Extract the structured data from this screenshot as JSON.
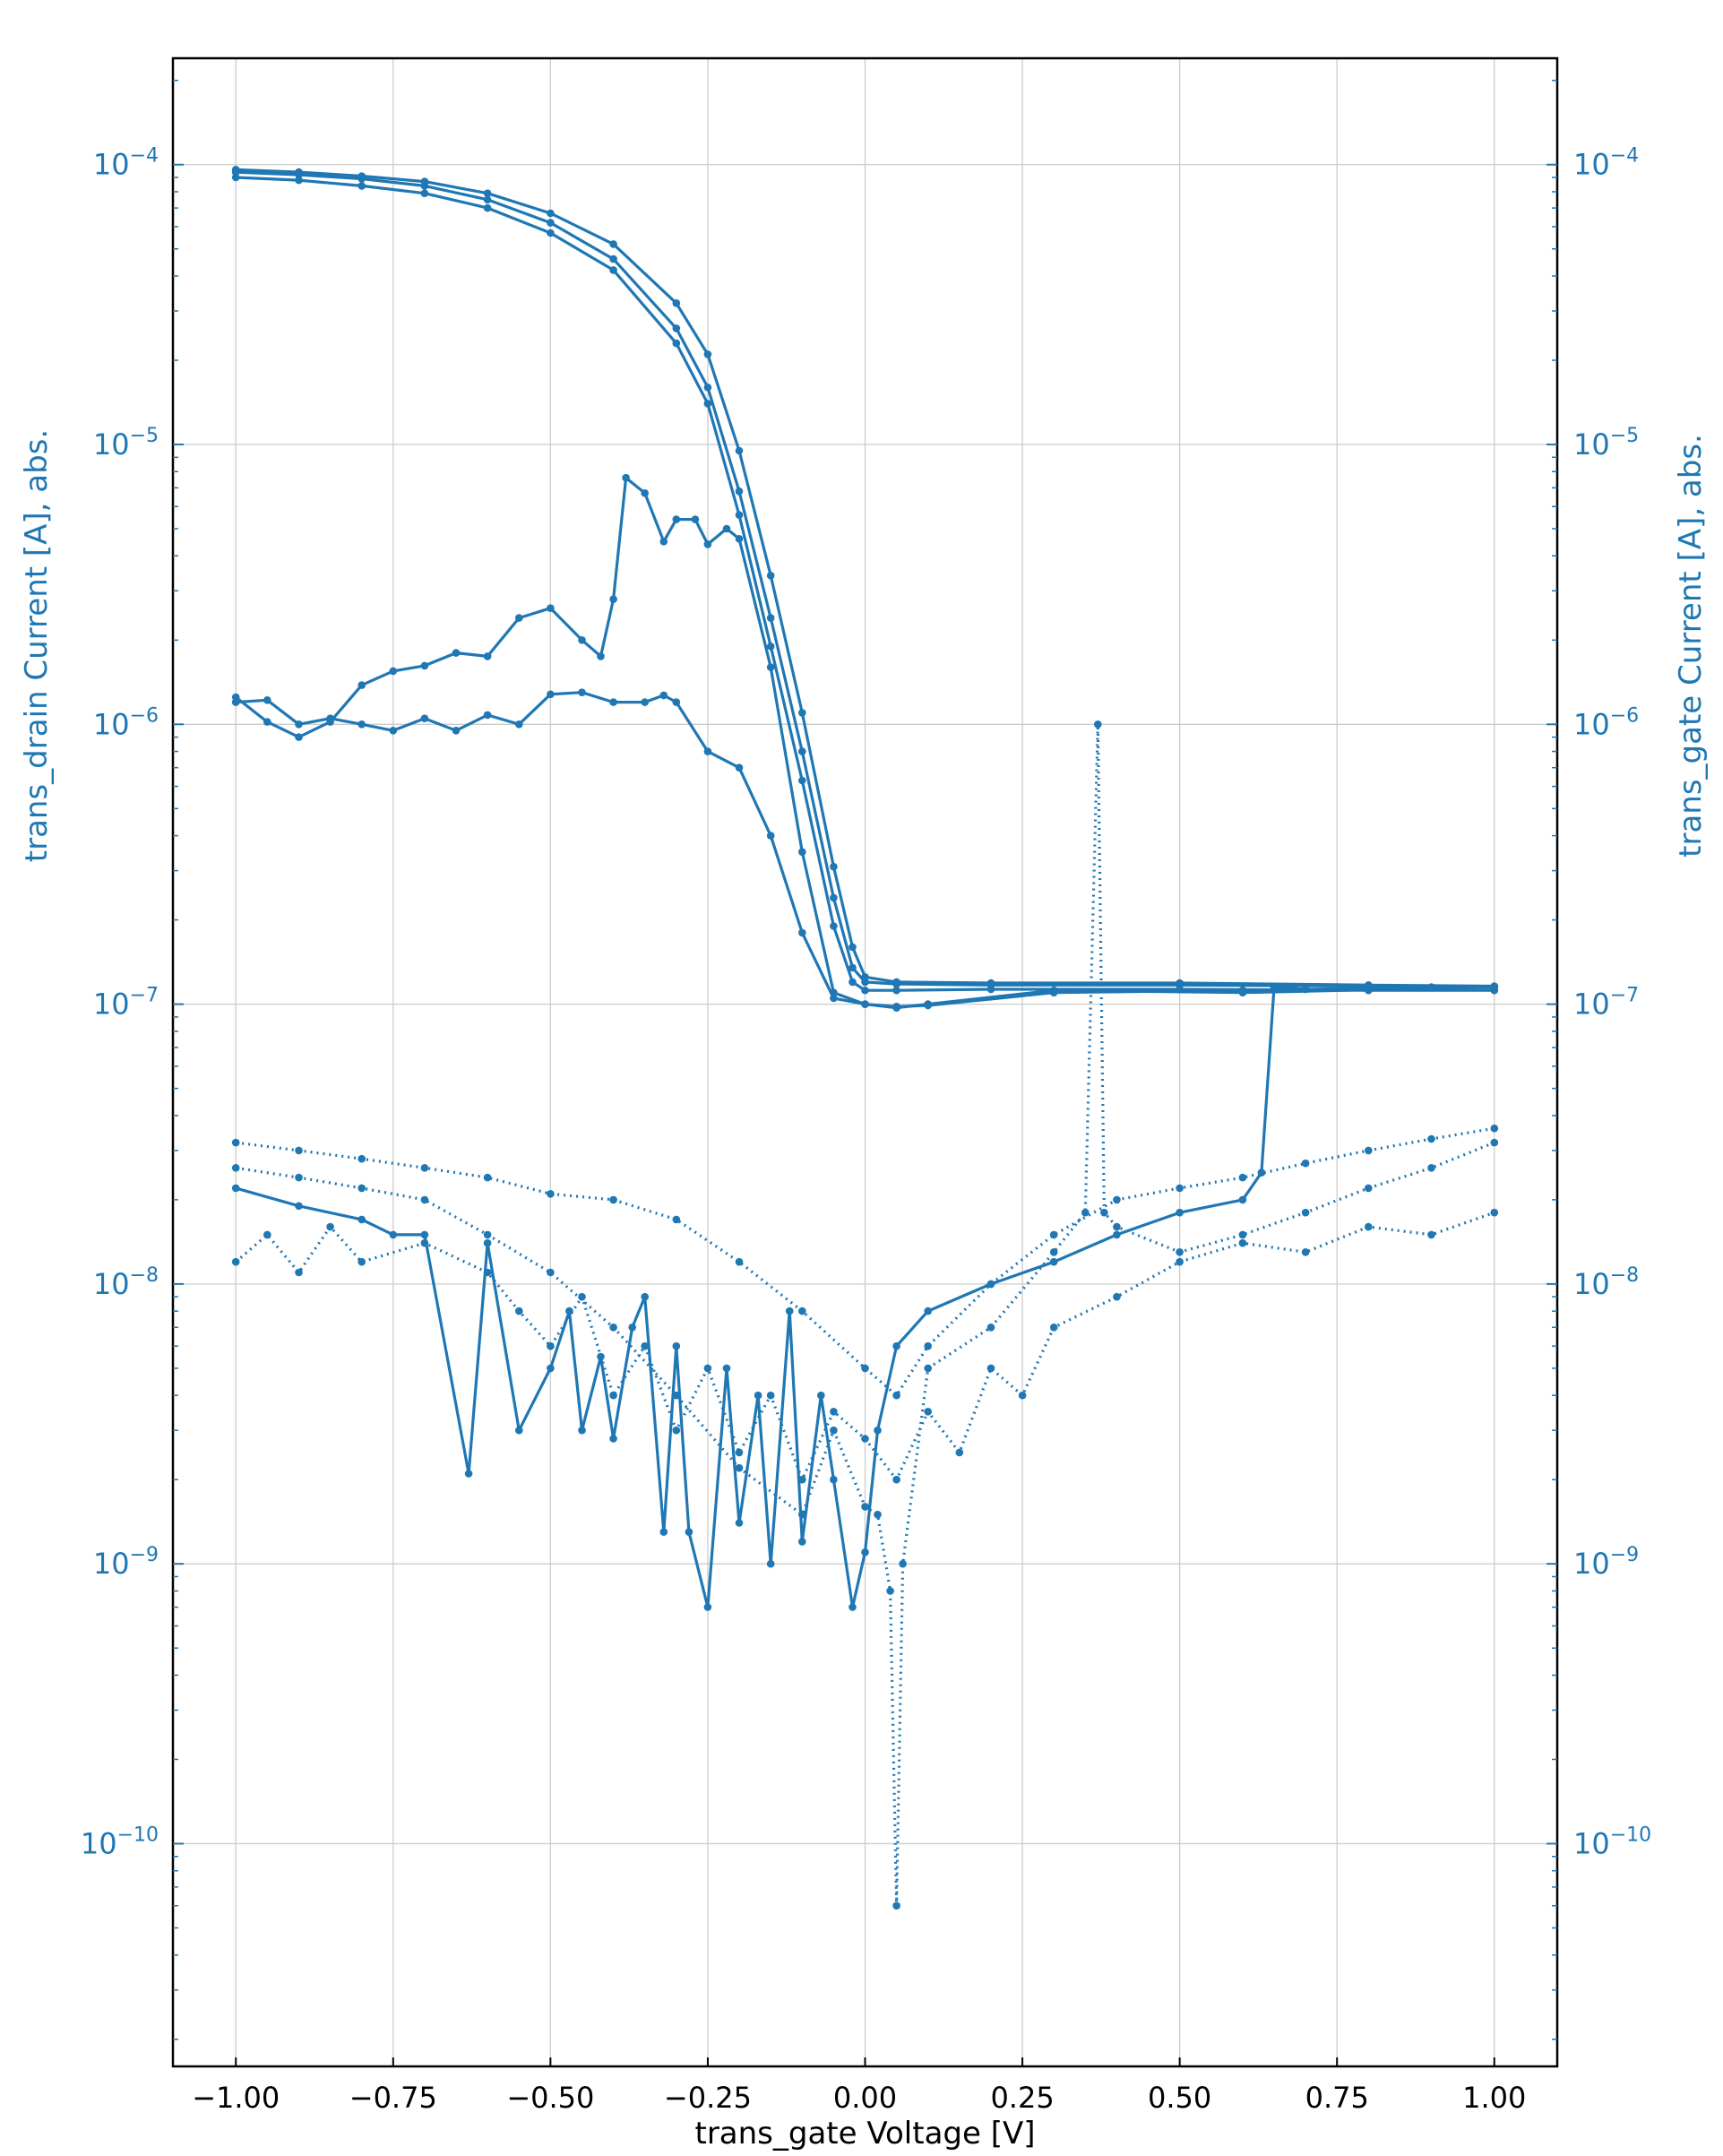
{
  "chart_data": {
    "type": "line",
    "xlabel": "trans_gate Voltage [V]",
    "ylabel_left": "trans_drain Current [A], abs.",
    "ylabel_right": "trans_gate Current [A], abs.",
    "xlim": [
      -1.1,
      1.1
    ],
    "ylim": [
      1.6e-11,
      0.00024
    ],
    "yscale": "log",
    "grid": true,
    "colors": {
      "series": "#1f77b4",
      "axis_text": "#1f77b4",
      "frame": "#000000",
      "grid": "#cccccc"
    },
    "x_ticks": [
      {
        "value": -1.0,
        "label": "−1.00"
      },
      {
        "value": -0.75,
        "label": "−0.75"
      },
      {
        "value": -0.5,
        "label": "−0.50"
      },
      {
        "value": -0.25,
        "label": "−0.25"
      },
      {
        "value": 0.0,
        "label": "0.00"
      },
      {
        "value": 0.25,
        "label": "0.25"
      },
      {
        "value": 0.5,
        "label": "0.50"
      },
      {
        "value": 0.75,
        "label": "0.75"
      },
      {
        "value": 1.0,
        "label": "1.00"
      }
    ],
    "y_ticks": [
      {
        "value": 1e-10,
        "base": "10",
        "exp": "−10"
      },
      {
        "value": 1e-09,
        "base": "10",
        "exp": "−9"
      },
      {
        "value": 1e-08,
        "base": "10",
        "exp": "−8"
      },
      {
        "value": 1e-07,
        "base": "10",
        "exp": "−7"
      },
      {
        "value": 1e-06,
        "base": "10",
        "exp": "−6"
      },
      {
        "value": 1e-05,
        "base": "10",
        "exp": "−5"
      },
      {
        "value": 0.0001,
        "base": "10",
        "exp": "−4"
      }
    ],
    "series": [
      {
        "style": "solid",
        "x": [
          -1.0,
          -0.9,
          -0.8,
          -0.7,
          -0.6,
          -0.5,
          -0.4,
          -0.3,
          -0.25,
          -0.2,
          -0.15,
          -0.1,
          -0.05,
          -0.02,
          0.0,
          0.05,
          0.2,
          0.5,
          0.8,
          1.0
        ],
        "y": [
          9.4e-05,
          9.2e-05,
          8.9e-05,
          8.4e-05,
          7.5e-05,
          6.2e-05,
          4.6e-05,
          2.6e-05,
          1.6e-05,
          6.8e-06,
          2.4e-06,
          8e-07,
          2.4e-07,
          1.35e-07,
          1.2e-07,
          1.18e-07,
          1.17e-07,
          1.17e-07,
          1.16e-07,
          1.15e-07
        ]
      },
      {
        "style": "solid",
        "x": [
          -1.0,
          -0.9,
          -0.8,
          -0.7,
          -0.6,
          -0.5,
          -0.4,
          -0.3,
          -0.25,
          -0.2,
          -0.15,
          -0.1,
          -0.05,
          -0.02,
          0.0,
          0.05,
          0.2,
          0.5,
          0.8,
          1.0
        ],
        "y": [
          9.6e-05,
          9.4e-05,
          9.1e-05,
          8.7e-05,
          7.9e-05,
          6.7e-05,
          5.2e-05,
          3.2e-05,
          2.1e-05,
          9.5e-06,
          3.4e-06,
          1.1e-06,
          3.1e-07,
          1.6e-07,
          1.25e-07,
          1.2e-07,
          1.19e-07,
          1.19e-07,
          1.17e-07,
          1.16e-07
        ]
      },
      {
        "style": "solid",
        "x": [
          -1.0,
          -0.9,
          -0.8,
          -0.7,
          -0.6,
          -0.5,
          -0.4,
          -0.3,
          -0.25,
          -0.2,
          -0.15,
          -0.1,
          -0.05,
          -0.02,
          0.0,
          0.05,
          0.2,
          0.5,
          0.8,
          1.0
        ],
        "y": [
          9e-05,
          8.8e-05,
          8.4e-05,
          7.9e-05,
          7e-05,
          5.7e-05,
          4.2e-05,
          2.3e-05,
          1.4e-05,
          5.6e-06,
          1.9e-06,
          6.3e-07,
          1.9e-07,
          1.2e-07,
          1.12e-07,
          1.12e-07,
          1.13e-07,
          1.13e-07,
          1.12e-07,
          1.12e-07
        ]
      },
      {
        "style": "solid",
        "x": [
          -1.0,
          -0.95,
          -0.9,
          -0.85,
          -0.8,
          -0.75,
          -0.7,
          -0.65,
          -0.6,
          -0.55,
          -0.5,
          -0.45,
          -0.42,
          -0.4,
          -0.38,
          -0.35,
          -0.32,
          -0.3,
          -0.27,
          -0.25,
          -0.22,
          -0.2,
          -0.15,
          -0.1,
          -0.05,
          0.0,
          0.05,
          0.1,
          0.3,
          0.6,
          1.0
        ],
        "y": [
          1.25e-06,
          1.02e-06,
          9e-07,
          1.02e-06,
          1.38e-06,
          1.55e-06,
          1.62e-06,
          1.8e-06,
          1.75e-06,
          2.4e-06,
          2.6e-06,
          2e-06,
          1.75e-06,
          2.8e-06,
          7.6e-06,
          6.7e-06,
          4.5e-06,
          5.4e-06,
          5.4e-06,
          4.4e-06,
          5e-06,
          4.6e-06,
          1.6e-06,
          3.5e-07,
          1.1e-07,
          1e-07,
          9.8e-08,
          9.9e-08,
          1.1e-07,
          1.12e-07,
          1.15e-07
        ]
      },
      {
        "style": "solid",
        "x": [
          -1.0,
          -0.95,
          -0.9,
          -0.85,
          -0.8,
          -0.75,
          -0.7,
          -0.65,
          -0.6,
          -0.55,
          -0.5,
          -0.45,
          -0.4,
          -0.35,
          -0.32,
          -0.3,
          -0.25,
          -0.2,
          -0.15,
          -0.1,
          -0.05,
          0.0,
          0.05,
          0.1,
          0.3,
          0.6,
          1.0
        ],
        "y": [
          1.2e-06,
          1.22e-06,
          1e-06,
          1.05e-06,
          1e-06,
          9.5e-07,
          1.05e-06,
          9.5e-07,
          1.08e-06,
          1e-06,
          1.28e-06,
          1.3e-06,
          1.2e-06,
          1.2e-06,
          1.27e-06,
          1.2e-06,
          8e-07,
          7e-07,
          4e-07,
          1.8e-07,
          1.05e-07,
          1e-07,
          9.7e-08,
          1e-07,
          1.12e-07,
          1.1e-07,
          1.15e-07
        ]
      },
      {
        "style": "dotted",
        "x": [
          -1.0,
          -0.9,
          -0.8,
          -0.7,
          -0.6,
          -0.5,
          -0.4,
          -0.3,
          -0.2,
          -0.1,
          -0.05,
          0.0,
          0.02,
          0.04,
          0.05,
          0.06,
          0.1,
          0.2,
          0.3,
          0.35,
          0.37,
          0.38,
          0.4,
          0.5,
          0.6,
          0.7,
          0.8,
          0.9,
          1.0
        ],
        "y": [
          2.6e-08,
          2.4e-08,
          2.2e-08,
          2e-08,
          1.5e-08,
          1.1e-08,
          7e-09,
          4e-09,
          2.2e-09,
          1.5e-09,
          3e-09,
          1.6e-09,
          1.5e-09,
          8e-10,
          6e-11,
          1e-09,
          5e-09,
          7e-09,
          1.3e-08,
          1.8e-08,
          1e-06,
          1.8e-08,
          1.6e-08,
          1.3e-08,
          1.5e-08,
          1.8e-08,
          2.2e-08,
          2.6e-08,
          3.2e-08
        ]
      },
      {
        "style": "dotted",
        "x": [
          -1.0,
          -0.9,
          -0.8,
          -0.7,
          -0.6,
          -0.5,
          -0.4,
          -0.3,
          -0.2,
          -0.1,
          0.0,
          0.05,
          0.1,
          0.2,
          0.3,
          0.4,
          0.5,
          0.6,
          0.7,
          0.8,
          0.9,
          1.0
        ],
        "y": [
          3.2e-08,
          3e-08,
          2.8e-08,
          2.6e-08,
          2.4e-08,
          2.1e-08,
          2e-08,
          1.7e-08,
          1.2e-08,
          8e-09,
          5e-09,
          4e-09,
          6e-09,
          1e-08,
          1.5e-08,
          2e-08,
          2.2e-08,
          2.4e-08,
          2.7e-08,
          3e-08,
          3.3e-08,
          3.6e-08
        ]
      },
      {
        "style": "dotted",
        "x": [
          -1.0,
          -0.95,
          -0.9,
          -0.85,
          -0.8,
          -0.7,
          -0.6,
          -0.55,
          -0.5,
          -0.45,
          -0.4,
          -0.35,
          -0.3,
          -0.25,
          -0.2,
          -0.15,
          -0.1,
          -0.05,
          0.0,
          0.05,
          0.1,
          0.15,
          0.2,
          0.25,
          0.3,
          0.4,
          0.5,
          0.6,
          0.7,
          0.8,
          0.9,
          1.0
        ],
        "y": [
          1.2e-08,
          1.5e-08,
          1.1e-08,
          1.6e-08,
          1.2e-08,
          1.4e-08,
          1.1e-08,
          8e-09,
          6e-09,
          9e-09,
          4e-09,
          6e-09,
          3e-09,
          5e-09,
          2.5e-09,
          4e-09,
          2e-09,
          3.5e-09,
          2.8e-09,
          2e-09,
          3.5e-09,
          2.5e-09,
          5e-09,
          4e-09,
          7e-09,
          9e-09,
          1.2e-08,
          1.4e-08,
          1.3e-08,
          1.6e-08,
          1.5e-08,
          1.8e-08
        ]
      },
      {
        "style": "solid",
        "x": [
          -1.0,
          -0.9,
          -0.8,
          -0.75,
          -0.7,
          -0.63,
          -0.6,
          -0.55,
          -0.5,
          -0.47,
          -0.45,
          -0.42,
          -0.4,
          -0.37,
          -0.35,
          -0.32,
          -0.3,
          -0.28,
          -0.25,
          -0.22,
          -0.2,
          -0.17,
          -0.15,
          -0.12,
          -0.1,
          -0.07,
          -0.05,
          -0.02,
          0.0,
          0.02,
          0.05,
          0.1,
          0.2,
          0.3,
          0.4,
          0.5,
          0.6,
          0.63,
          0.65,
          0.7,
          0.8,
          0.9,
          1.0
        ],
        "y": [
          2.2e-08,
          1.9e-08,
          1.7e-08,
          1.5e-08,
          1.5e-08,
          2.1e-09,
          1.4e-08,
          3e-09,
          5e-09,
          8e-09,
          3e-09,
          5.5e-09,
          2.8e-09,
          7e-09,
          9e-09,
          1.3e-09,
          6e-09,
          1.3e-09,
          7e-10,
          5e-09,
          1.4e-09,
          4e-09,
          1e-09,
          8e-09,
          1.2e-09,
          4e-09,
          2e-09,
          7e-10,
          1.1e-09,
          3e-09,
          6e-09,
          8e-09,
          1e-08,
          1.2e-08,
          1.5e-08,
          1.8e-08,
          2e-08,
          2.5e-08,
          1.15e-07,
          1.13e-07,
          1.14e-07,
          1.15e-07,
          1.15e-07
        ]
      }
    ]
  }
}
